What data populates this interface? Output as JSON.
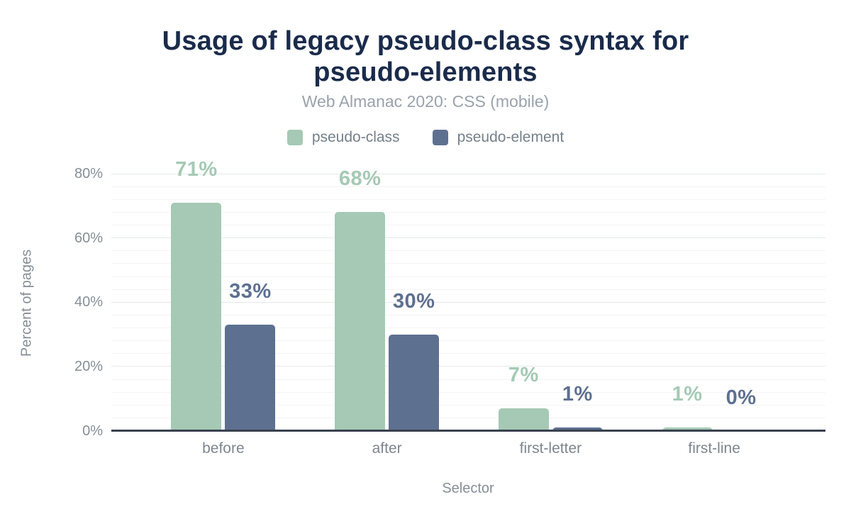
{
  "title": "Usage of legacy pseudo-class syntax for pseudo-elements",
  "subtitle": "Web Almanac 2020: CSS (mobile)",
  "legend": [
    {
      "label": "pseudo-class",
      "color": "#a5c9b4"
    },
    {
      "label": "pseudo-element",
      "color": "#5e7090"
    }
  ],
  "chart_data": {
    "type": "bar",
    "title": "Usage of legacy pseudo-class syntax for pseudo-elements",
    "subtitle": "Web Almanac 2020: CSS (mobile)",
    "categories": [
      "before",
      "after",
      "first-letter",
      "first-line"
    ],
    "series": [
      {
        "name": "pseudo-class",
        "color": "#a5c9b4",
        "values": [
          71,
          68,
          7,
          1
        ]
      },
      {
        "name": "pseudo-element",
        "color": "#5e7090",
        "values": [
          33,
          30,
          1,
          0
        ]
      }
    ],
    "xlabel": "Selector",
    "ylabel": "Percent of pages",
    "ylim": [
      0,
      80
    ],
    "ytick_step": 20,
    "minor_grid_step": 4,
    "tick_suffix": "%",
    "value_label_suffix": "%",
    "grid": true,
    "legend_position": "top"
  },
  "colors": {
    "title": "#1a2b4b",
    "subtitle": "#9aa2ab",
    "axis_line": "#39414e",
    "grid_minor": "#f4f4f6",
    "grid_major": "#e6e8eb",
    "tick_text": "#868e96",
    "category_text": "#7d868f",
    "legend_text": "#75808a"
  }
}
